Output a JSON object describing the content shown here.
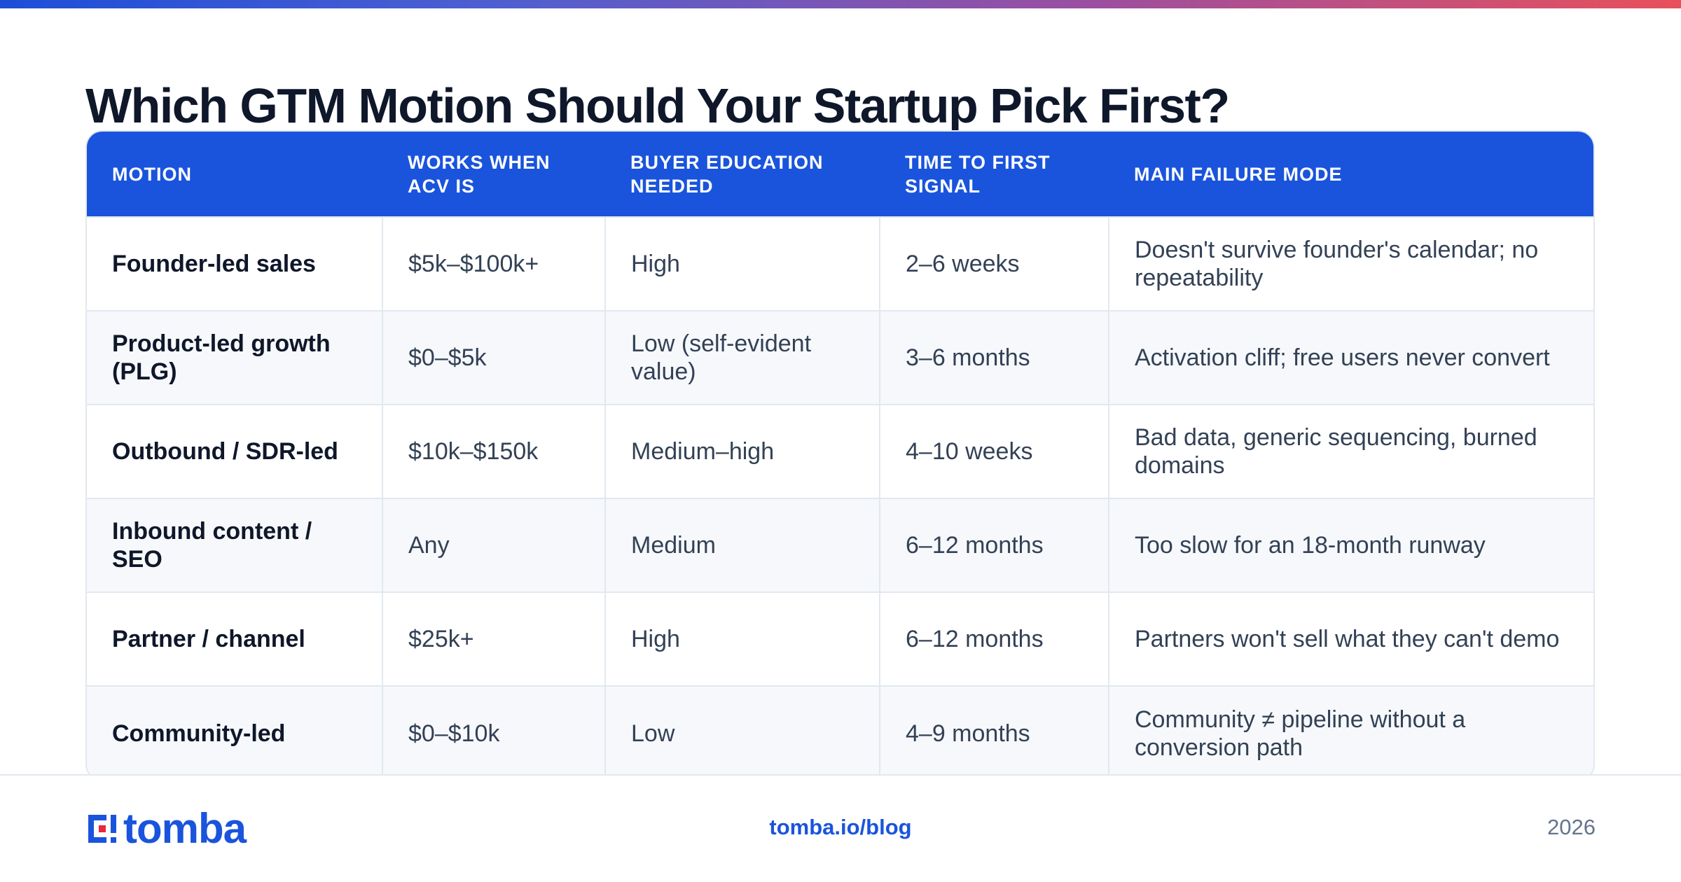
{
  "title": "Which GTM Motion Should Your Startup Pick First?",
  "colors": {
    "accent": "#1a54dc",
    "logo_red": "#e8283c",
    "gradient_start": "#1d4ed8",
    "gradient_end": "#e8505b"
  },
  "table": {
    "headers": [
      "MOTION",
      "WORKS WHEN ACV IS",
      "BUYER EDUCATION NEEDED",
      "TIME TO FIRST SIGNAL",
      "MAIN FAILURE MODE"
    ],
    "rows": [
      [
        "Founder-led sales",
        "$5k–$100k+",
        "High",
        "2–6 weeks",
        "Doesn't survive founder's calendar; no repeatability"
      ],
      [
        "Product-led growth (PLG)",
        "$0–$5k",
        "Low (self-evident value)",
        "3–6 months",
        "Activation cliff; free users never convert"
      ],
      [
        "Outbound / SDR-led",
        "$10k–$150k",
        "Medium–high",
        "4–10 weeks",
        "Bad data, generic sequencing, burned domains"
      ],
      [
        "Inbound content / SEO",
        "Any",
        "Medium",
        "6–12 months",
        "Too slow for an 18-month runway"
      ],
      [
        "Partner / channel",
        "$25k+",
        "High",
        "6–12 months",
        "Partners won't sell what they can't demo"
      ],
      [
        "Community-led",
        "$0–$10k",
        "Low",
        "4–9 months",
        "Community ≠ pipeline without a conversion path"
      ]
    ]
  },
  "footer": {
    "logo_text": "tomba",
    "logo_icon": "tomba-logo-icon",
    "link": "tomba.io/blog",
    "year": "2026"
  }
}
